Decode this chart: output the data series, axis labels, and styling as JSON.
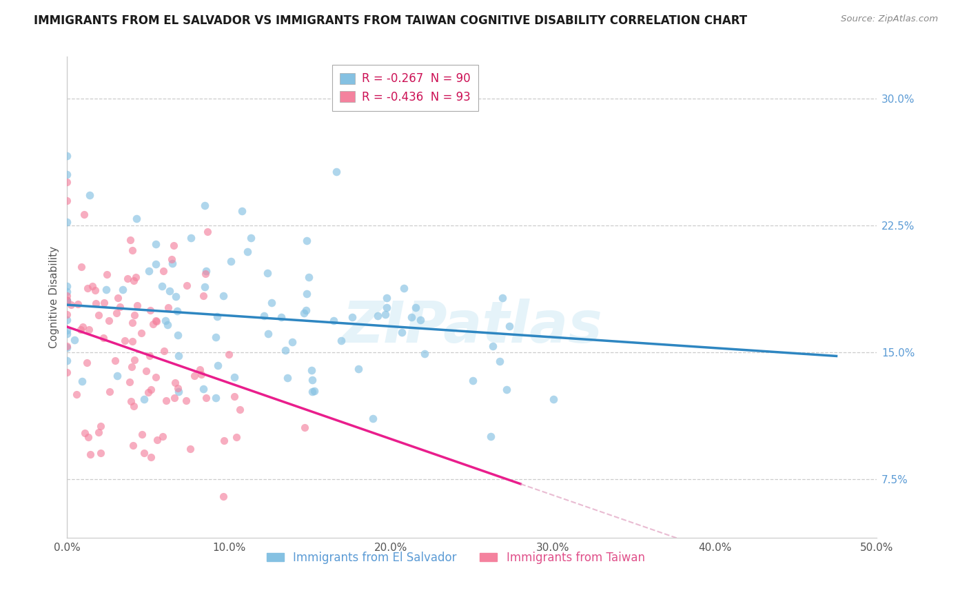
{
  "title": "IMMIGRANTS FROM EL SALVADOR VS IMMIGRANTS FROM TAIWAN COGNITIVE DISABILITY CORRELATION CHART",
  "source": "Source: ZipAtlas.com",
  "ylabel_label": "Cognitive Disability",
  "legend_label_1": "Immigrants from El Salvador",
  "legend_label_2": "Immigrants from Taiwan",
  "R1": -0.267,
  "N1": 90,
  "R2": -0.436,
  "N2": 93,
  "color1": "#85c1e2",
  "color2": "#f4829e",
  "trendline1_color": "#2e86c1",
  "trendline2_color": "#e91e8c",
  "trendline2_dash_color": "#e0a0c0",
  "watermark": "ZIPatlas",
  "xlim": [
    0.0,
    0.5
  ],
  "ylim": [
    0.04,
    0.325
  ],
  "yticks": [
    0.075,
    0.15,
    0.225,
    0.3
  ],
  "ytick_labels": [
    "7.5%",
    "15.0%",
    "22.5%",
    "30.0%"
  ],
  "xticks": [
    0.0,
    0.1,
    0.2,
    0.3,
    0.4,
    0.5
  ],
  "xtick_labels": [
    "0.0%",
    "10.0%",
    "20.0%",
    "30.0%",
    "40.0%",
    "50.0%"
  ],
  "legend_R_color": "#cc1155",
  "legend_N_color": "#333333",
  "right_tick_color": "#5b9bd5"
}
